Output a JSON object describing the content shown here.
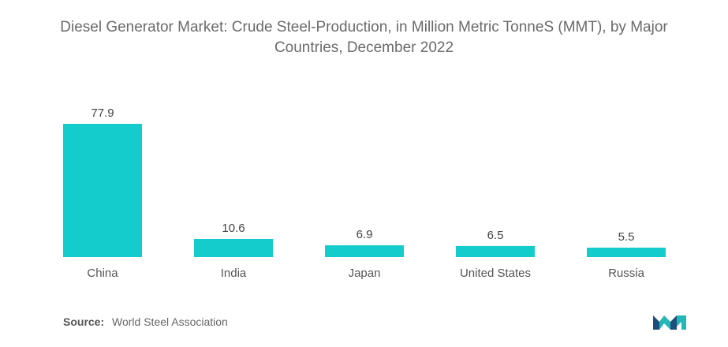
{
  "chart_data": {
    "type": "bar",
    "title_line1": "Diesel Generator Market: Crude Steel-Production, in Million Metric TonneS (MMT), by Major",
    "title_line2": "Countries, December 2022",
    "categories": [
      "China",
      "India",
      "Japan",
      "United States",
      "Russia"
    ],
    "values": [
      77.9,
      10.6,
      6.9,
      6.5,
      5.5
    ],
    "value_labels": [
      "77.9",
      "10.6",
      "6.9",
      "6.5",
      "5.5"
    ],
    "ylim": [
      0,
      77.9
    ],
    "grid": false,
    "bar_color": "#14cccc"
  },
  "source": {
    "label": "Source:",
    "text": "World Steel Association"
  },
  "logo": {
    "icon": "mordor-intelligence-logo",
    "colors": [
      "#1d4f7c",
      "#23b7b7"
    ]
  }
}
